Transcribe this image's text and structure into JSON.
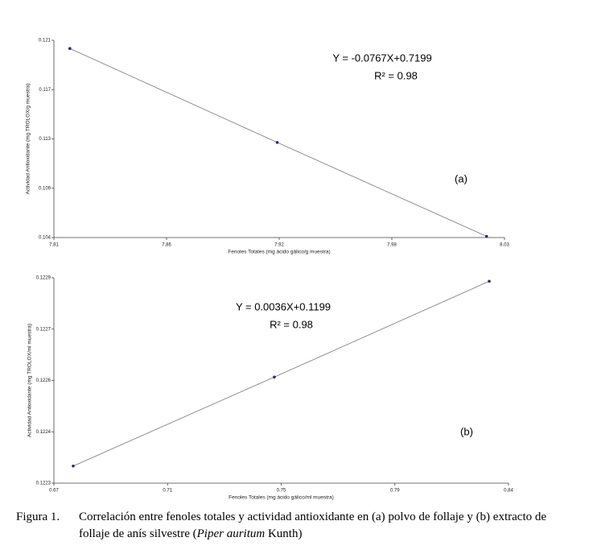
{
  "chart_data": [
    {
      "type": "line",
      "x_label": "Fenoles Totales (mg ácido gálico/g muestra)",
      "y_label": "Actividad Antioxidante (mg TROLOX/g muestra)",
      "annotations": [
        "Y = -0.0767X+0.7199",
        "R² = 0.98",
        "(a)"
      ],
      "x": [
        7.815,
        7.919,
        8.024
      ],
      "series": [
        {
          "values": [
            0.1205,
            0.1125,
            0.1045
          ],
          "color": "#1f2a7a"
        }
      ],
      "xlim": [
        7.807,
        8.033
      ],
      "xticks": [
        {
          "value": 7.807,
          "label": "7.81"
        },
        {
          "value": 7.8635,
          "label": "7.86"
        },
        7.92,
        {
          "value": 7.9765,
          "label": "7.98"
        },
        {
          "value": 8.033,
          "label": "8.03"
        }
      ],
      "ylim": [
        0.1044,
        0.1212
      ],
      "yticks": [
        {
          "value": 0.1044,
          "label": "0.104"
        },
        {
          "value": 0.1086,
          "label": "0.109"
        },
        {
          "value": 0.1128,
          "label": "0.113"
        },
        0.117,
        {
          "value": 0.1212,
          "label": "0.121"
        }
      ],
      "grid": false
    },
    {
      "type": "line",
      "x_label": "Fenoles Totales (mg ácido gálico/ml muestra)",
      "y_label": "Actividad Antioxidante (mg TROLOX/ml muestra)",
      "annotations": [
        "Y = 0.0036X+0.1199",
        "R² = 0.98",
        "(b)"
      ],
      "x": [
        0.677,
        0.75,
        0.828
      ],
      "series": [
        {
          "values": [
            0.12234,
            0.1226,
            0.12288
          ],
          "color": "#1f2a7a"
        }
      ],
      "xlim": [
        0.67,
        0.835
      ],
      "xticks": [
        0.67,
        {
          "value": 0.71125,
          "label": "0.71"
        },
        {
          "value": 0.7525,
          "label": "0.75"
        },
        {
          "value": 0.79375,
          "label": "0.79"
        },
        {
          "value": 0.835,
          "label": "0.84"
        }
      ],
      "ylim": [
        0.12229,
        0.12289
      ],
      "yticks": [
        {
          "value": 0.12229,
          "label": "0.1223"
        },
        {
          "value": 0.12244,
          "label": "0.1224"
        },
        {
          "value": 0.12259,
          "label": "0.1226"
        },
        {
          "value": 0.12274,
          "label": "0.1227"
        },
        {
          "value": 0.12289,
          "label": "0.1229"
        }
      ],
      "grid": false
    }
  ],
  "caption": {
    "label": "Figura 1.",
    "text": "Correlación entre fenoles totales y actividad antioxidante en (a) polvo de follaje y (b) extracto de follaje de anís silvestre (",
    "species": "Piper auritum",
    "authority": " Kunth)"
  }
}
